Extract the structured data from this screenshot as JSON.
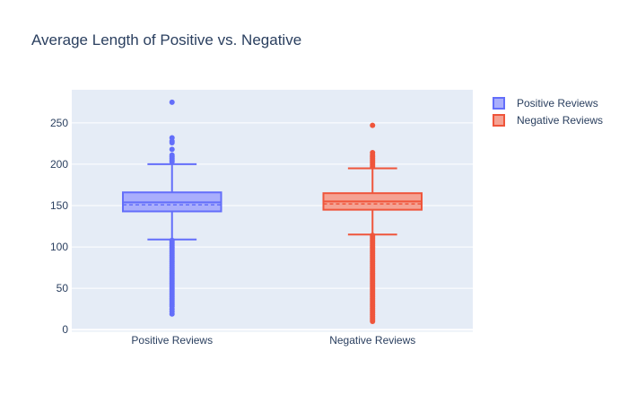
{
  "chart_data": {
    "type": "box",
    "title": "Average Length of Positive vs. Negative",
    "xlabel": "",
    "ylabel": "",
    "ylim": [
      -3,
      290
    ],
    "y_ticks": [
      0,
      50,
      100,
      150,
      200,
      250
    ],
    "grid": true,
    "legend_position": "top-right",
    "categories": [
      "Positive Reviews",
      "Negative Reviews"
    ],
    "series": [
      {
        "name": "Positive Reviews",
        "color": "#636efa",
        "fill": "#a9aefc",
        "lower_fence": 109,
        "q1": 143,
        "median": 154,
        "mean": 151,
        "q3": 166,
        "upper_fence": 200,
        "outliers": [
          275,
          232,
          228,
          226,
          218,
          211,
          209,
          207,
          205,
          203,
          108,
          106,
          104,
          102,
          100,
          98,
          96,
          94,
          92,
          90,
          88,
          86,
          84,
          82,
          80,
          78,
          76,
          74,
          72,
          70,
          68,
          66,
          64,
          62,
          60,
          58,
          56,
          54,
          52,
          50,
          48,
          46,
          44,
          42,
          40,
          38,
          36,
          34,
          32,
          30,
          28,
          25,
          22,
          19
        ]
      },
      {
        "name": "Negative Reviews",
        "color": "#ef553b",
        "fill": "#f5a293",
        "lower_fence": 115,
        "q1": 145,
        "median": 155,
        "mean": 152,
        "q3": 165,
        "upper_fence": 195,
        "outliers": [
          247,
          214,
          211,
          209,
          207,
          205,
          203,
          201,
          199,
          197,
          114,
          112,
          110,
          108,
          106,
          104,
          102,
          100,
          98,
          96,
          94,
          92,
          90,
          88,
          86,
          84,
          82,
          80,
          78,
          76,
          74,
          72,
          70,
          68,
          66,
          64,
          62,
          60,
          58,
          56,
          54,
          52,
          50,
          48,
          46,
          44,
          42,
          40,
          38,
          36,
          34,
          32,
          30,
          28,
          26,
          24,
          22,
          20,
          18,
          16,
          14,
          12,
          10
        ]
      }
    ]
  }
}
